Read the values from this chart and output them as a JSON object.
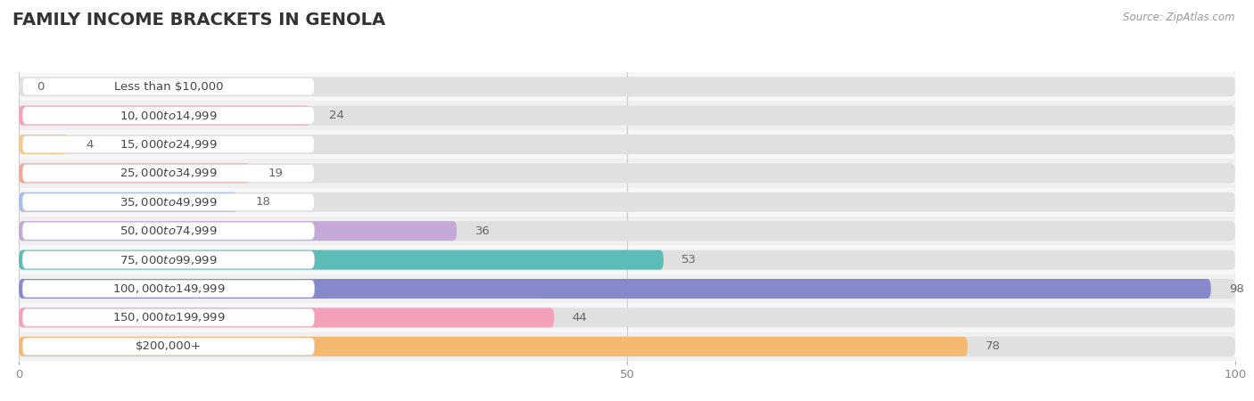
{
  "title": "FAMILY INCOME BRACKETS IN GENOLA",
  "source": "Source: ZipAtlas.com",
  "categories": [
    "Less than $10,000",
    "$10,000 to $14,999",
    "$15,000 to $24,999",
    "$25,000 to $34,999",
    "$35,000 to $49,999",
    "$50,000 to $74,999",
    "$75,000 to $99,999",
    "$100,000 to $149,999",
    "$150,000 to $199,999",
    "$200,000+"
  ],
  "values": [
    0,
    24,
    4,
    19,
    18,
    36,
    53,
    98,
    44,
    78
  ],
  "bar_colors": [
    "#b0afd8",
    "#f4a0b8",
    "#f5c98a",
    "#f0a898",
    "#aabce8",
    "#c4a8d8",
    "#5bbcb8",
    "#8888cc",
    "#f4a0b8",
    "#f5b870"
  ],
  "row_bg_colors": [
    "#ffffff",
    "#f5f5f5"
  ],
  "xlim": [
    0,
    100
  ],
  "xticks": [
    0,
    50,
    100
  ],
  "background_color": "#ffffff",
  "bar_bg_color": "#e8e8e8",
  "title_fontsize": 14,
  "label_fontsize": 9.5,
  "value_fontsize": 9.5,
  "bar_height": 0.68
}
